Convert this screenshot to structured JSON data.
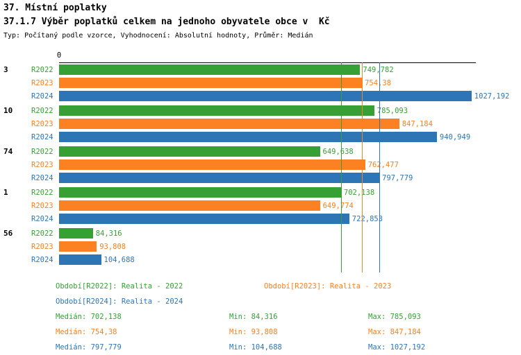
{
  "title": "37. Místní poplatky",
  "chart_title": "37.1.7 Výběr poplatků celkem na jednoho obyvatele obce v  Kč",
  "meta": "Typ: Počítaný podle vzorce, Vyhodnocení: Absolutní hodnoty, Průměr: Medián",
  "colors": {
    "R2022": "#37a035",
    "R2023": "#fb8122",
    "R2024": "#2e75b6"
  },
  "chart_data": {
    "type": "bar",
    "orientation": "horizontal",
    "unit": "Kč",
    "grid": false,
    "x_axis": {
      "origin_label": "0",
      "max": 1038
    },
    "series_names": [
      "R2022",
      "R2023",
      "R2024"
    ],
    "categories": [
      "3",
      "10",
      "74",
      "1",
      "56"
    ],
    "groups": [
      {
        "label": "3",
        "bars": [
          {
            "series": "R2022",
            "value": 749.782,
            "display": "749,782"
          },
          {
            "series": "R2023",
            "value": 754.38,
            "display": "754,38"
          },
          {
            "series": "R2024",
            "value": 1027.192,
            "display": "1027,192"
          }
        ]
      },
      {
        "label": "10",
        "bars": [
          {
            "series": "R2022",
            "value": 785.093,
            "display": "785,093"
          },
          {
            "series": "R2023",
            "value": 847.184,
            "display": "847,184"
          },
          {
            "series": "R2024",
            "value": 940.949,
            "display": "940,949"
          }
        ]
      },
      {
        "label": "74",
        "bars": [
          {
            "series": "R2022",
            "value": 649.638,
            "display": "649,638"
          },
          {
            "series": "R2023",
            "value": 762.477,
            "display": "762,477"
          },
          {
            "series": "R2024",
            "value": 797.779,
            "display": "797,779"
          }
        ]
      },
      {
        "label": "1",
        "bars": [
          {
            "series": "R2022",
            "value": 702.138,
            "display": "702,138"
          },
          {
            "series": "R2023",
            "value": 649.774,
            "display": "649,774"
          },
          {
            "series": "R2024",
            "value": 722.853,
            "display": "722,853"
          }
        ]
      },
      {
        "label": "56",
        "bars": [
          {
            "series": "R2022",
            "value": 84.316,
            "display": "84,316"
          },
          {
            "series": "R2023",
            "value": 93.808,
            "display": "93,808"
          },
          {
            "series": "R2024",
            "value": 104.688,
            "display": "104,688"
          }
        ]
      }
    ],
    "median_lines": [
      {
        "series": "R2022",
        "value": 702.138
      },
      {
        "series": "R2023",
        "value": 754.38
      },
      {
        "series": "R2024",
        "value": 797.779
      }
    ]
  },
  "legend": [
    {
      "series": "R2022",
      "label": "Období[R2022]: Realita - 2022"
    },
    {
      "series": "R2023",
      "label": "Období[R2023]: Realita - 2023"
    },
    {
      "series": "R2024",
      "label": "Období[R2024]: Realita - 2024"
    }
  ],
  "stats": [
    {
      "series": "R2022",
      "median": "Medián: 702,138",
      "min": "Min: 84,316",
      "max": "Max: 785,093"
    },
    {
      "series": "R2023",
      "median": "Medián: 754,38",
      "min": "Min: 93,808",
      "max": "Max: 847,184"
    },
    {
      "series": "R2024",
      "median": "Medián: 797,779",
      "min": "Min: 104,688",
      "max": "Max: 1027,192"
    }
  ]
}
